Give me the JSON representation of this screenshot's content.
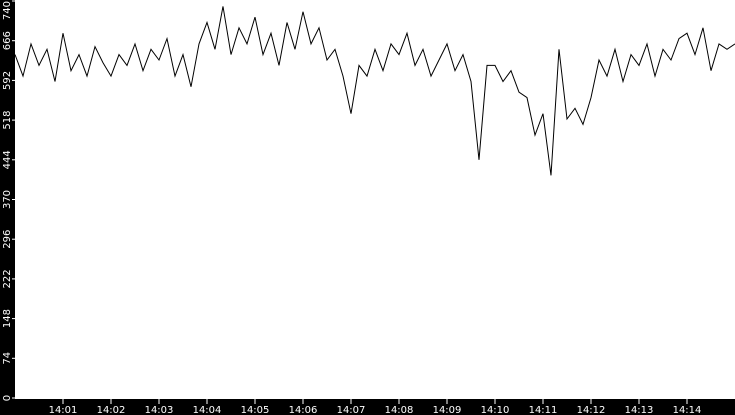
{
  "chart_data": {
    "type": "line",
    "title": "",
    "xlabel": "",
    "ylabel": "",
    "ylim": [
      0,
      740
    ],
    "xlim": [
      "14:00:00",
      "14:15:00"
    ],
    "yticks": [
      0,
      74,
      148,
      222,
      296,
      370,
      444,
      518,
      592,
      666,
      740
    ],
    "xticks": [
      "14:01",
      "14:02",
      "14:03",
      "14:04",
      "14:05",
      "14:06",
      "14:07",
      "14:08",
      "14:09",
      "14:10",
      "14:11",
      "14:12",
      "14:13",
      "14:14"
    ],
    "grid": false,
    "x_interval_seconds": 10,
    "x_start": "14:00:00",
    "colors": {
      "background": "#000000",
      "plot": "#ffffff",
      "line": "#000000",
      "axis_text": "#ffffff"
    },
    "series": [
      {
        "values": [
          640,
          600,
          660,
          620,
          650,
          590,
          680,
          610,
          640,
          600,
          655,
          625,
          600,
          640,
          620,
          660,
          610,
          650,
          630,
          670,
          600,
          640,
          580,
          660,
          700,
          650,
          730,
          640,
          690,
          660,
          710,
          640,
          680,
          620,
          700,
          650,
          720,
          660,
          690,
          630,
          650,
          600,
          530,
          620,
          600,
          650,
          610,
          660,
          640,
          680,
          620,
          650,
          600,
          630,
          660,
          610,
          640,
          590,
          444,
          620,
          620,
          590,
          610,
          570,
          560,
          490,
          530,
          415,
          650,
          520,
          540,
          510,
          560,
          630,
          600,
          650,
          590,
          640,
          620,
          660,
          600,
          650,
          630,
          670,
          680,
          640,
          690,
          610,
          660,
          650,
          660
        ]
      }
    ]
  }
}
